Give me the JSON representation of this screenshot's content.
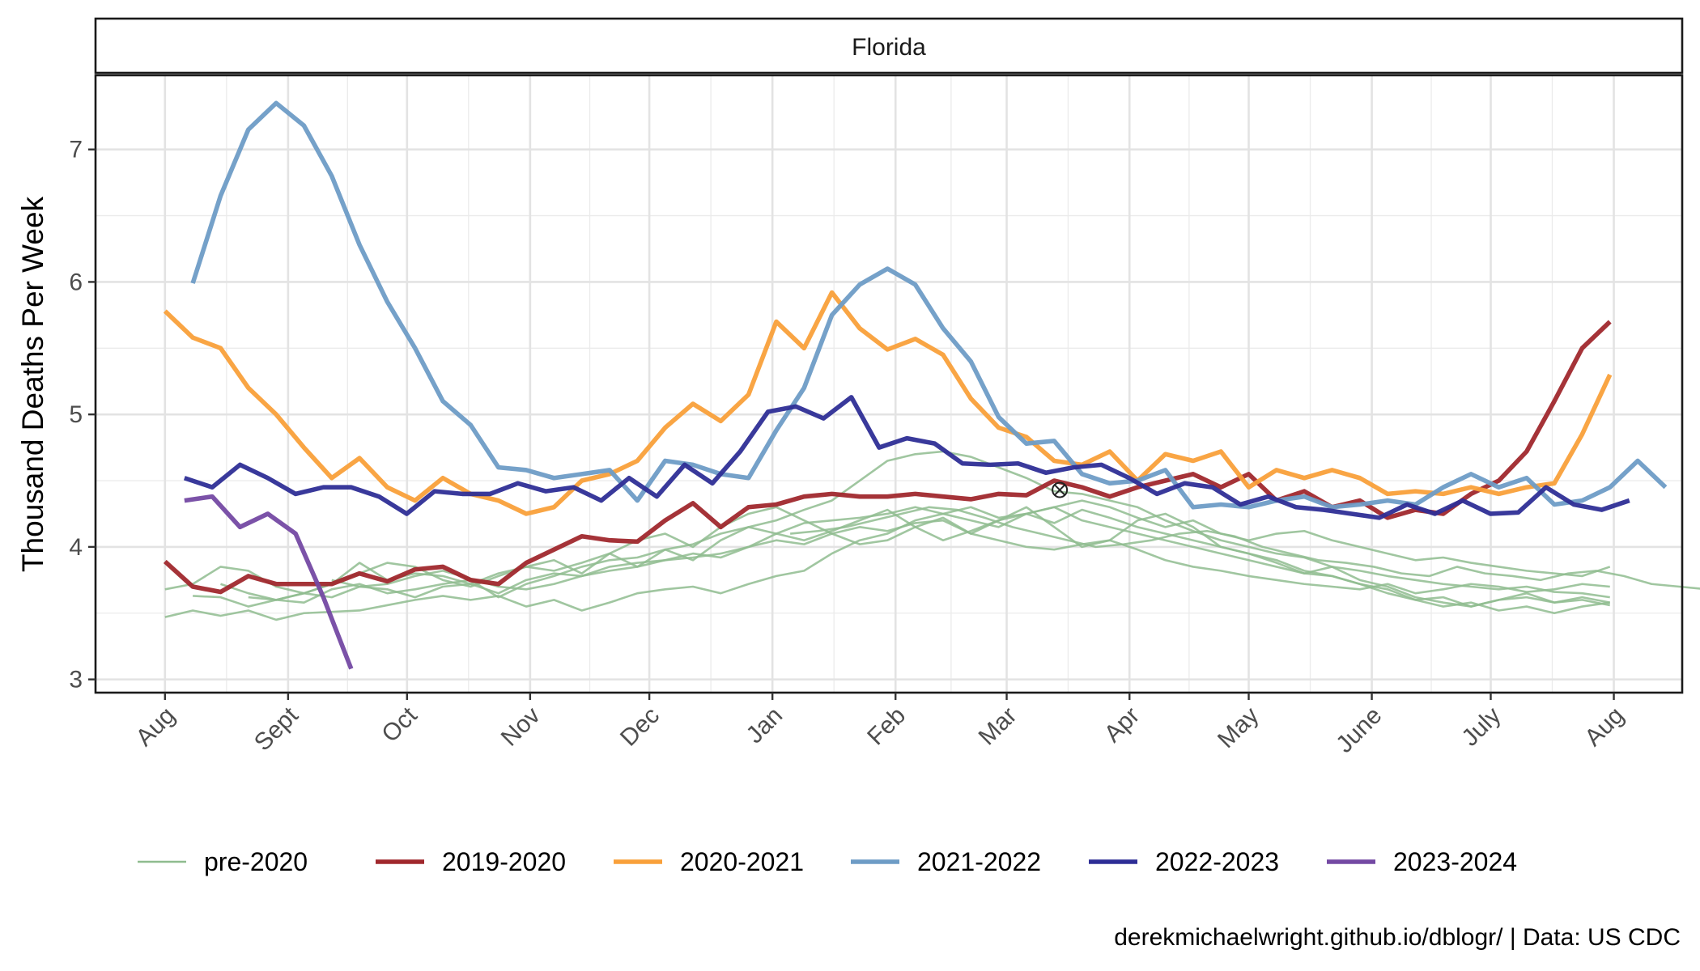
{
  "chart_data": {
    "type": "line",
    "facet_title": "Florida",
    "ylabel": "Thousand Deaths Per Week",
    "xlabel": "",
    "caption": "derekmichaelwright.github.io/dblogr/ | Data: US CDC",
    "x_unit": "week of season (0 = start of August, 52 = next August)",
    "x_ticks": [
      {
        "label": "Aug",
        "week": 0
      },
      {
        "label": "Sept",
        "week": 4.43
      },
      {
        "label": "Oct",
        "week": 8.71
      },
      {
        "label": "Nov",
        "week": 13.14
      },
      {
        "label": "Dec",
        "week": 17.43
      },
      {
        "label": "Jan",
        "week": 21.86
      },
      {
        "label": "Feb",
        "week": 26.29
      },
      {
        "label": "Mar",
        "week": 30.29
      },
      {
        "label": "Apr",
        "week": 34.71
      },
      {
        "label": "May",
        "week": 39.0
      },
      {
        "label": "June",
        "week": 43.43
      },
      {
        "label": "July",
        "week": 47.71
      },
      {
        "label": "Aug",
        "week": 52.14
      }
    ],
    "y_ticks": [
      3,
      4,
      5,
      6,
      7
    ],
    "xlim": [
      -2.5,
      54.6
    ],
    "ylim": [
      2.9,
      7.56
    ],
    "grid": true,
    "legend_position": "bottom",
    "marker": {
      "week": 32.2,
      "value": 4.43,
      "symbol": "circle-cross"
    },
    "background_series": {
      "name": "pre-2020",
      "color": "#8fbc8f",
      "lines": [
        {
          "start": 0,
          "values": [
            3.47,
            3.52,
            3.48,
            3.52,
            3.45,
            3.5,
            3.51,
            3.52,
            3.56,
            3.6,
            3.63,
            3.6,
            3.63,
            3.55,
            3.6,
            3.52,
            3.58,
            3.65,
            3.68,
            3.7,
            3.65,
            3.72,
            3.78,
            3.82,
            3.95,
            4.05,
            4.1,
            4.2,
            4.25,
            4.3,
            4.22,
            4.25,
            4.3,
            4.2,
            4.15,
            4.1,
            4.05,
            4.0,
            3.95,
            3.9,
            3.85,
            3.8,
            3.78,
            3.72,
            3.68,
            3.6,
            3.55,
            3.58,
            3.52,
            3.55,
            3.5,
            3.55,
            3.58
          ]
        },
        {
          "start": 0,
          "values": [
            3.68,
            3.72,
            3.85,
            3.82,
            3.7,
            3.65,
            3.62,
            3.7,
            3.68,
            3.62,
            3.7,
            3.72,
            3.65,
            3.75,
            3.8,
            3.78,
            3.85,
            3.88,
            3.9,
            3.95,
            3.92,
            4.0,
            4.1,
            4.18,
            4.2,
            4.22,
            4.25,
            4.3,
            4.25,
            4.2,
            4.15,
            4.25,
            4.3,
            4.35,
            4.3,
            4.22,
            4.15,
            4.2,
            4.1,
            4.05,
            4.1,
            4.12,
            4.05,
            4.0,
            3.95,
            3.9,
            3.92,
            3.88,
            3.85,
            3.82,
            3.8,
            3.78,
            3.85
          ]
        },
        {
          "start": 1,
          "values": [
            3.63,
            3.62,
            3.55,
            3.6,
            3.58,
            3.68,
            3.72,
            3.65,
            3.68,
            3.72,
            3.75,
            3.62,
            3.72,
            3.78,
            3.85,
            3.9,
            3.92,
            3.98,
            3.9,
            4.05,
            4.15,
            4.2,
            4.28,
            4.35,
            4.5,
            4.65,
            4.7,
            4.72,
            4.68,
            4.6,
            4.52,
            4.42,
            4.4,
            4.35,
            4.3,
            4.2,
            4.12,
            4.05,
            4.0,
            3.95,
            3.92,
            3.85,
            3.82,
            3.78,
            3.75,
            3.72,
            3.7,
            3.68,
            3.7,
            3.66,
            3.65,
            3.62
          ]
        },
        {
          "start": 2,
          "values": [
            3.72,
            3.65,
            3.6,
            3.65,
            3.72,
            3.88,
            3.75,
            3.8,
            3.78,
            3.72,
            3.8,
            3.85,
            3.9,
            3.8,
            3.95,
            3.85,
            3.98,
            4.02,
            4.1,
            4.15,
            4.1,
            4.05,
            4.12,
            4.2,
            4.28,
            4.15,
            4.05,
            4.12,
            4.2,
            4.25,
            4.18,
            4.28,
            4.22,
            4.15,
            4.1,
            4.05,
            4.0,
            3.95,
            3.9,
            3.82,
            3.78,
            3.72,
            3.65,
            3.6,
            3.62,
            3.55,
            3.6,
            3.65,
            3.58,
            3.62,
            3.58
          ]
        },
        {
          "start": 3,
          "values": [
            3.62,
            3.6,
            3.65,
            3.72,
            3.8,
            3.88,
            3.85,
            3.75,
            3.7,
            3.78,
            3.85,
            3.82,
            3.88,
            3.95,
            4.05,
            4.1,
            4.0,
            4.15,
            4.25,
            4.3,
            4.2,
            4.1,
            4.02,
            4.05,
            4.15,
            4.22,
            4.1,
            4.2,
            4.3,
            4.15,
            4.0,
            4.05,
            4.2,
            4.25,
            4.15,
            4.0,
            3.95,
            3.88,
            3.8,
            3.85,
            3.75,
            3.7,
            3.62,
            3.58,
            3.55,
            3.6,
            3.62,
            3.58,
            3.6,
            3.56
          ]
        },
        {
          "start": 6,
          "values": [
            3.75,
            3.7,
            3.72,
            3.78,
            3.82,
            3.76,
            3.7,
            3.68,
            3.72,
            3.78,
            3.82,
            3.85,
            3.9,
            3.92,
            3.95,
            4.0,
            4.05,
            4.02,
            4.1,
            4.15,
            4.12,
            4.18,
            4.2,
            4.1,
            4.05,
            4.0,
            3.98,
            4.02,
            4.05,
            3.98,
            3.9,
            3.85,
            3.82,
            3.78,
            3.75,
            3.72,
            3.7,
            3.68,
            3.72,
            3.65,
            3.68,
            3.72,
            3.7,
            3.66,
            3.68,
            3.72,
            3.7
          ]
        },
        {
          "start": 22.5,
          "values": [
            4.1,
            4.12,
            4.15,
            4.2,
            4.25,
            4.3,
            4.28,
            4.22,
            4.15,
            4.1,
            4.05,
            4.0,
            4.02,
            4.05,
            4.1,
            4.12,
            4.08,
            4.0,
            3.95,
            3.9,
            3.88,
            3.85,
            3.8,
            3.78,
            3.85,
            3.8,
            3.78,
            3.75,
            3.8,
            3.82,
            3.78,
            3.72,
            3.7,
            3.68
          ]
        }
      ]
    },
    "series": [
      {
        "name": "2019-2020",
        "color": "#a0282d",
        "start": 0,
        "values": [
          3.89,
          3.7,
          3.66,
          3.78,
          3.72,
          3.72,
          3.72,
          3.8,
          3.74,
          3.83,
          3.85,
          3.75,
          3.72,
          3.88,
          3.98,
          4.08,
          4.05,
          4.04,
          4.2,
          4.33,
          4.15,
          4.3,
          4.32,
          4.38,
          4.4,
          4.38,
          4.38,
          4.4,
          4.38,
          4.36,
          4.4,
          4.39,
          4.5,
          4.45,
          4.38,
          4.45,
          4.5,
          4.55,
          4.45,
          4.55,
          4.35,
          4.42,
          4.3,
          4.35,
          4.22,
          4.28,
          4.25,
          4.4,
          4.5,
          4.72,
          5.1,
          5.5,
          5.7
        ]
      },
      {
        "name": "2020-2021",
        "color": "#f9a03a",
        "start": 0,
        "values": [
          5.78,
          5.58,
          5.5,
          5.2,
          5.0,
          4.75,
          4.52,
          4.67,
          4.45,
          4.35,
          4.52,
          4.4,
          4.35,
          4.25,
          4.3,
          4.5,
          4.55,
          4.65,
          4.9,
          5.08,
          4.95,
          5.15,
          5.7,
          5.5,
          5.92,
          5.65,
          5.49,
          5.57,
          5.45,
          5.12,
          4.9,
          4.83,
          4.65,
          4.62,
          4.72,
          4.5,
          4.7,
          4.65,
          4.72,
          4.45,
          4.58,
          4.52,
          4.58,
          4.52,
          4.4,
          4.42,
          4.4,
          4.45,
          4.4,
          4.45,
          4.48,
          4.85,
          5.3
        ]
      },
      {
        "name": "2021-2022",
        "color": "#6e9cc6",
        "start": 1,
        "values": [
          5.99,
          6.65,
          7.15,
          7.35,
          7.18,
          6.8,
          6.28,
          5.85,
          5.5,
          5.1,
          4.92,
          4.6,
          4.58,
          4.52,
          4.55,
          4.58,
          4.35,
          4.65,
          4.62,
          4.55,
          4.52,
          4.88,
          5.2,
          5.75,
          5.98,
          6.1,
          5.98,
          5.65,
          5.4,
          4.98,
          4.78,
          4.8,
          4.55,
          4.48,
          4.5,
          4.58,
          4.3,
          4.32,
          4.3,
          4.35,
          4.38,
          4.3,
          4.32,
          4.35,
          4.32,
          4.45,
          4.55,
          4.45,
          4.52,
          4.32,
          4.35,
          4.45,
          4.65,
          4.45
        ]
      },
      {
        "name": "2022-2023",
        "color": "#2e2e96",
        "start": 0.7,
        "values": [
          4.52,
          4.45,
          4.62,
          4.52,
          4.4,
          4.45,
          4.45,
          4.38,
          4.25,
          4.42,
          4.4,
          4.4,
          4.48,
          4.42,
          4.45,
          4.35,
          4.52,
          4.38,
          4.62,
          4.48,
          4.72,
          5.02,
          5.06,
          4.97,
          5.13,
          4.75,
          4.82,
          4.78,
          4.63,
          4.62,
          4.63,
          4.56,
          4.6,
          4.62,
          4.52,
          4.4,
          4.48,
          4.45,
          4.32,
          4.38,
          4.3,
          4.28,
          4.25,
          4.22,
          4.32,
          4.25,
          4.35,
          4.25,
          4.26,
          4.45,
          4.32,
          4.28,
          4.35
        ]
      },
      {
        "name": "2023-2024",
        "color": "#7449a3",
        "start": 0.7,
        "values": [
          4.35,
          4.38,
          4.15,
          4.25,
          4.1,
          3.62,
          3.08
        ]
      }
    ]
  }
}
